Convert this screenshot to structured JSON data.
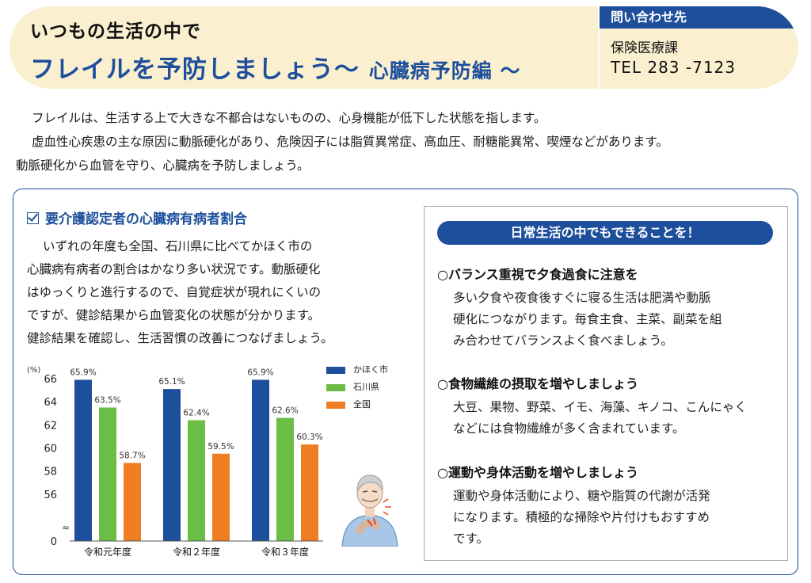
{
  "header": {
    "subtitle": "いつもの生活の中で",
    "title_main": "フレイルを予防しましょう～",
    "title_sub": "心臓病予防編 ～",
    "contact_label": "問い合わせ先",
    "contact_dept": "保険医療課",
    "contact_tel": "TEL 283 -7123"
  },
  "intro": [
    "フレイルは、生活する上で大きな不都合はないものの、心身機能が低下した状態を指します。",
    "虚血性心疾患の主な原因に動脈硬化があり、危険因子には脂質異常症、高血圧、耐糖能異常、喫煙などがあります。",
    "動脈硬化から血管を守り、心臓病を予防しましょう。"
  ],
  "section": {
    "title": "要介護認定者の心臓病有病者割合",
    "body": [
      "いずれの年度も全国、石川県に比べてかほく市の",
      "心臓病有病者の割合はかなり多い状況です。動脈硬化",
      "はゆっくりと進行するので、自覚症状が現れにくいの",
      "ですが、健診結果から血管変化の状態が分かります。",
      "健診結果を確認し、生活習慣の改善につなげましょう。"
    ]
  },
  "chart_data": {
    "type": "bar",
    "categories": [
      "令和元年度",
      "令和２年度",
      "令和３年度"
    ],
    "series": [
      {
        "name": "かほく市",
        "values": [
          65.9,
          65.1,
          65.9
        ],
        "labels": [
          "65.9%",
          "65.1%",
          "65.9%"
        ],
        "color": "#1e4f9c"
      },
      {
        "name": "石川県",
        "values": [
          63.5,
          62.4,
          62.6
        ],
        "labels": [
          "63.5%",
          "62.4%",
          "62.6%"
        ],
        "color": "#6cbd45"
      },
      {
        "name": "全国",
        "values": [
          58.7,
          59.5,
          60.3
        ],
        "labels": [
          "58.7%",
          "59.5%",
          "60.3%"
        ],
        "color": "#ef7d22"
      }
    ],
    "ylabel": "(%)",
    "yticks": [
      "66",
      "64",
      "62",
      "60",
      "58",
      "56",
      "0"
    ],
    "ylim": [
      54,
      66.5
    ],
    "axis_break": true,
    "legend_position": "right"
  },
  "tips": {
    "header": "日常生活の中でもできることを！",
    "items": [
      {
        "title": "○バランス重視で夕食過食に注意を",
        "body": [
          "多い夕食や夜食後すぐに寝る生活は肥満や動脈",
          "硬化につながります。毎食主食、主菜、副菜を組",
          "み合わせてバランスよく食べましょう。"
        ]
      },
      {
        "title": "○食物繊維の摂取を増やしましょう",
        "body": [
          "大豆、果物、野菜、イモ、海藻、キノコ、こんにゃく",
          "などには食物繊維が多く含まれています。"
        ]
      },
      {
        "title": "○運動や身体活動を増やしましょう",
        "body": [
          "運動や身体活動により、糖や脂質の代謝が活発",
          "になります。積極的な掃除や片付けもおすすめ",
          "です。"
        ]
      }
    ]
  }
}
